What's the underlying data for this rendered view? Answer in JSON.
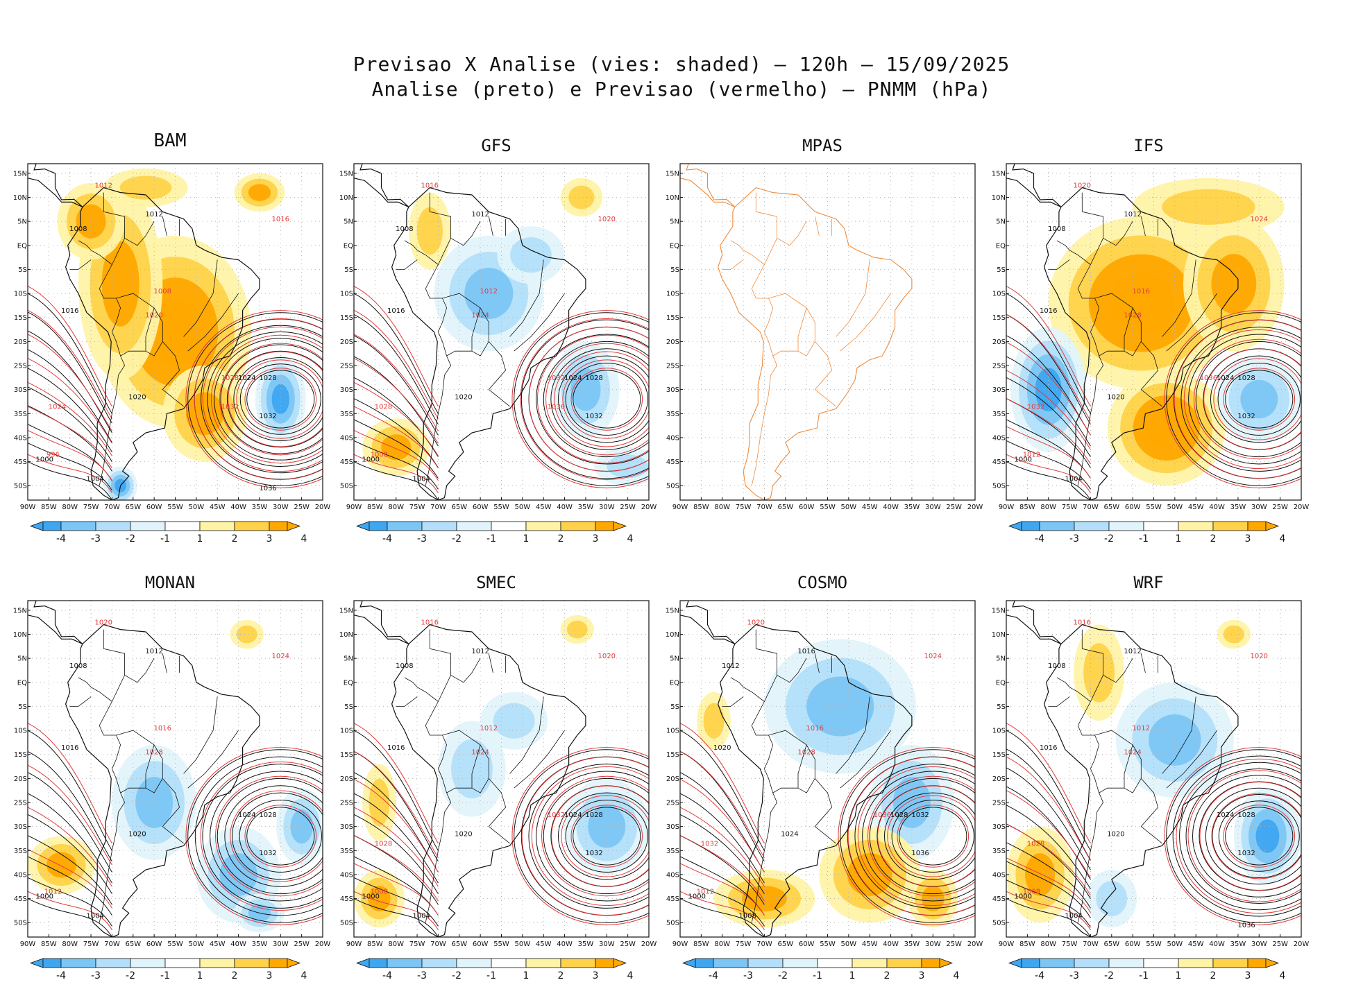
{
  "header": {
    "line1": "Previsao X Analise (vies: shaded) – 120h – 15/09/2025",
    "line2": "Analise (preto) e Previsao (vermelho) – PNMM (hPa)"
  },
  "legend": {
    "labels": [
      "-4",
      "-3",
      "-2",
      "-1",
      "1",
      "2",
      "3",
      "4"
    ],
    "colors": [
      "#3fa6f0",
      "#7cc6f6",
      "#b3dffa",
      "#e2f4fb",
      "#ffffff",
      "#fff3a6",
      "#ffd24a",
      "#ffa800"
    ]
  },
  "palette": {
    "analysis": "#111111",
    "forecast": "#e23b3b",
    "coast_mpas": "#f08a3a",
    "grid": "#b5b5b5"
  },
  "axes": {
    "lat_labels": [
      "15N",
      "10N",
      "5N",
      "EQ",
      "5S",
      "10S",
      "15S",
      "20S",
      "25S",
      "30S",
      "35S",
      "40S",
      "45S",
      "50S"
    ],
    "lon_labels": [
      "90W",
      "85W",
      "80W",
      "75W",
      "70W",
      "65W",
      "60W",
      "55W",
      "50W",
      "45W",
      "40W",
      "35W",
      "30W",
      "25W",
      "20W"
    ]
  },
  "chart_data": [
    {
      "type": "heatmap",
      "title": "BAM",
      "xlabel": "",
      "ylabel": "",
      "xlim": [
        -90,
        -20
      ],
      "ylim": [
        -53,
        17
      ],
      "bias_pattern": "warm",
      "analysis_contours": [
        1000,
        1004,
        1008,
        1012,
        1016,
        1020,
        1024,
        1028,
        1032,
        1036
      ],
      "forecast_contours": [
        996,
        1008,
        1012,
        1016,
        1020,
        1024,
        1028,
        1032
      ]
    },
    {
      "type": "heatmap",
      "title": "GFS",
      "xlabel": "",
      "ylabel": "",
      "xlim": [
        -90,
        -20
      ],
      "ylim": [
        -53,
        17
      ],
      "bias_pattern": "cool_interior",
      "analysis_contours": [
        1000,
        1004,
        1008,
        1012,
        1016,
        1020,
        1024,
        1028,
        1032
      ],
      "forecast_contours": [
        1008,
        1012,
        1016,
        1020,
        1024,
        1028,
        1032,
        1036
      ]
    },
    {
      "type": "heatmap",
      "title": "MPAS",
      "xlabel": "",
      "ylabel": "",
      "xlim": [
        -90,
        -20
      ],
      "ylim": [
        -53,
        17
      ],
      "bias_pattern": "none",
      "analysis_contours": [],
      "forecast_contours": []
    },
    {
      "type": "heatmap",
      "title": "IFS",
      "xlabel": "",
      "ylabel": "",
      "xlim": [
        -90,
        -20
      ],
      "ylim": [
        -53,
        17
      ],
      "bias_pattern": "warm_strong",
      "analysis_contours": [
        1000,
        1004,
        1008,
        1012,
        1016,
        1020,
        1024,
        1028,
        1032
      ],
      "forecast_contours": [
        1012,
        1016,
        1020,
        1024,
        1028,
        1032,
        1036
      ]
    },
    {
      "type": "heatmap",
      "title": "MONAN",
      "xlabel": "",
      "ylabel": "",
      "xlim": [
        -90,
        -20
      ],
      "ylim": [
        -53,
        17
      ],
      "bias_pattern": "cool_south",
      "analysis_contours": [
        1000,
        1004,
        1008,
        1012,
        1016,
        1020,
        1024,
        1028,
        1032
      ],
      "forecast_contours": [
        1012,
        1016,
        1020,
        1024,
        1028
      ]
    },
    {
      "type": "heatmap",
      "title": "SMEC",
      "xlabel": "",
      "ylabel": "",
      "xlim": [
        -90,
        -20
      ],
      "ylim": [
        -53,
        17
      ],
      "bias_pattern": "mixed",
      "analysis_contours": [
        1000,
        1004,
        1008,
        1012,
        1016,
        1020,
        1024,
        1028,
        1032
      ],
      "forecast_contours": [
        1008,
        1012,
        1016,
        1020,
        1024,
        1028,
        1032
      ]
    },
    {
      "type": "heatmap",
      "title": "COSMO",
      "xlabel": "",
      "ylabel": "",
      "xlim": [
        -90,
        -20
      ],
      "ylim": [
        -53,
        17
      ],
      "bias_pattern": "cool_interior_warm_south",
      "analysis_contours": [
        1000,
        1008,
        1012,
        1016,
        1020,
        1024,
        1028,
        1032,
        1036
      ],
      "forecast_contours": [
        1012,
        1016,
        1020,
        1024,
        1028,
        1032,
        1036
      ]
    },
    {
      "type": "heatmap",
      "title": "WRF",
      "xlabel": "",
      "ylabel": "",
      "xlim": [
        -90,
        -20
      ],
      "ylim": [
        -53,
        17
      ],
      "bias_pattern": "cool_east",
      "analysis_contours": [
        1000,
        1004,
        1008,
        1012,
        1016,
        1020,
        1024,
        1028,
        1032,
        1036
      ],
      "forecast_contours": [
        1008,
        1012,
        1016,
        1020,
        1024,
        1028
      ]
    }
  ]
}
